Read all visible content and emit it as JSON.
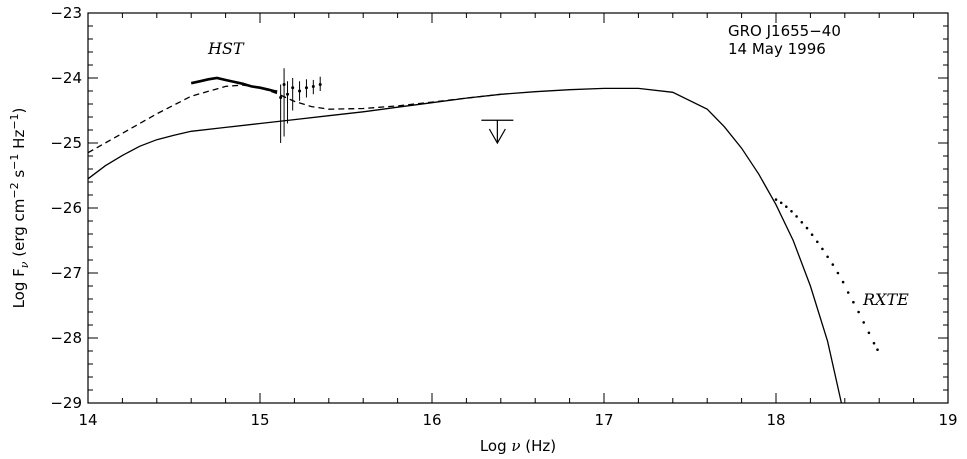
{
  "chart_data": {
    "type": "line",
    "xlabel_parts": [
      "Log ",
      "ν",
      " (Hz)"
    ],
    "ylabel_parts": [
      "Log F",
      "ν",
      " (erg cm",
      "−2",
      " s",
      "−1",
      " Hz",
      "−1",
      ")"
    ],
    "xlim": [
      14,
      19
    ],
    "ylim": [
      -29,
      -23
    ],
    "x_ticks": [
      14,
      15,
      16,
      17,
      18,
      19
    ],
    "x_tick_labels": [
      "14",
      "15",
      "16",
      "17",
      "18",
      "19"
    ],
    "y_ticks": [
      -23,
      -24,
      -25,
      -26,
      -27,
      -28,
      -29
    ],
    "y_tick_labels": [
      "−23",
      "−24",
      "−25",
      "−26",
      "−27",
      "−28",
      "−29"
    ],
    "annotations": {
      "source_name": "GRO J1655−40",
      "date": "14 May 1996",
      "hst_label": "HST",
      "rxte_label": "RXTE"
    },
    "series": [
      {
        "style": "solid",
        "x": [
          14.0,
          14.1,
          14.2,
          14.3,
          14.4,
          14.5,
          14.6,
          14.8,
          15.0,
          15.2,
          15.4,
          15.6,
          15.8,
          16.0,
          16.2,
          16.4,
          16.6,
          16.8,
          17.0,
          17.2,
          17.4,
          17.6,
          17.7,
          17.8,
          17.9,
          18.0,
          18.1,
          18.2,
          18.3,
          18.38
        ],
        "y": [
          -25.55,
          -25.35,
          -25.19,
          -25.05,
          -24.95,
          -24.88,
          -24.82,
          -24.76,
          -24.7,
          -24.64,
          -24.58,
          -24.52,
          -24.45,
          -24.38,
          -24.31,
          -24.25,
          -24.21,
          -24.18,
          -24.16,
          -24.16,
          -24.22,
          -24.48,
          -24.75,
          -25.08,
          -25.48,
          -25.95,
          -26.5,
          -27.2,
          -28.05,
          -29.0
        ]
      },
      {
        "style": "dashed",
        "x": [
          14.0,
          14.2,
          14.4,
          14.6,
          14.8,
          14.9,
          15.0,
          15.1,
          15.2,
          15.3,
          15.4,
          15.6,
          15.8,
          16.0,
          16.2,
          16.4
        ],
        "y": [
          -25.15,
          -24.85,
          -24.55,
          -24.28,
          -24.13,
          -24.11,
          -24.15,
          -24.24,
          -24.36,
          -24.44,
          -24.48,
          -24.47,
          -24.43,
          -24.37,
          -24.31,
          -24.25
        ]
      }
    ],
    "hst_spectrum": {
      "x": [
        14.6,
        14.65,
        14.7,
        14.75,
        14.8,
        14.85,
        14.9,
        14.95,
        15.0,
        15.05,
        15.08,
        15.1
      ],
      "y": [
        -24.08,
        -24.05,
        -24.02,
        -24.0,
        -24.03,
        -24.06,
        -24.09,
        -24.13,
        -24.15,
        -24.18,
        -24.2,
        -24.21
      ]
    },
    "hst_errorbars": [
      {
        "x": 15.12,
        "y": -24.3,
        "lo": -25.0,
        "hi": -24.1
      },
      {
        "x": 15.14,
        "y": -24.1,
        "lo": -24.9,
        "hi": -23.85
      },
      {
        "x": 15.16,
        "y": -24.25,
        "lo": -24.7,
        "hi": -24.05
      },
      {
        "x": 15.19,
        "y": -24.15,
        "lo": -24.5,
        "hi": -24.0
      },
      {
        "x": 15.23,
        "y": -24.2,
        "lo": -24.35,
        "hi": -24.05
      },
      {
        "x": 15.27,
        "y": -24.15,
        "lo": -24.3,
        "hi": -24.02
      },
      {
        "x": 15.31,
        "y": -24.13,
        "lo": -24.25,
        "hi": -24.03
      },
      {
        "x": 15.35,
        "y": -24.1,
        "lo": -24.2,
        "hi": -23.98
      }
    ],
    "upper_limit": {
      "x": 16.38,
      "y": -24.65,
      "arrow_to": -25.0
    },
    "rxte_points": {
      "x": [
        18.0,
        18.03,
        18.06,
        18.09,
        18.12,
        18.15,
        18.18,
        18.21,
        18.24,
        18.27,
        18.3,
        18.33,
        18.36,
        18.39,
        18.42,
        18.45,
        18.48,
        18.51,
        18.54,
        18.57,
        18.59
      ],
      "y": [
        -25.87,
        -25.92,
        -25.98,
        -26.05,
        -26.13,
        -26.22,
        -26.31,
        -26.41,
        -26.52,
        -26.63,
        -26.75,
        -26.87,
        -27.0,
        -27.14,
        -27.3,
        -27.45,
        -27.6,
        -27.76,
        -27.92,
        -28.08,
        -28.18
      ]
    }
  }
}
